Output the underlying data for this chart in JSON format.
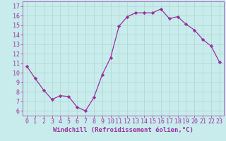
{
  "x": [
    0,
    1,
    2,
    3,
    4,
    5,
    6,
    7,
    8,
    9,
    10,
    11,
    12,
    13,
    14,
    15,
    16,
    17,
    18,
    19,
    20,
    21,
    22,
    23
  ],
  "y": [
    10.7,
    9.4,
    8.2,
    7.2,
    7.6,
    7.5,
    6.4,
    6.0,
    7.4,
    9.8,
    11.6,
    14.9,
    15.9,
    16.3,
    16.3,
    16.3,
    16.7,
    15.7,
    15.9,
    15.1,
    14.5,
    13.5,
    12.8,
    11.1
  ],
  "line_color": "#9b30a0",
  "marker": "D",
  "marker_size": 2.2,
  "background_color": "#c8ecec",
  "grid_color": "#aed4d4",
  "xlabel": "Windchill (Refroidissement éolien,°C)",
  "ylabel": "",
  "ylim": [
    5.5,
    17.5
  ],
  "xlim": [
    -0.5,
    23.5
  ],
  "yticks": [
    6,
    7,
    8,
    9,
    10,
    11,
    12,
    13,
    14,
    15,
    16,
    17
  ],
  "xticks": [
    0,
    1,
    2,
    3,
    4,
    5,
    6,
    7,
    8,
    9,
    10,
    11,
    12,
    13,
    14,
    15,
    16,
    17,
    18,
    19,
    20,
    21,
    22,
    23
  ],
  "tick_color": "#9b30a0",
  "axis_color": "#9b30a0",
  "label_fontsize": 6.5,
  "tick_fontsize": 6.0,
  "linewidth": 0.9
}
